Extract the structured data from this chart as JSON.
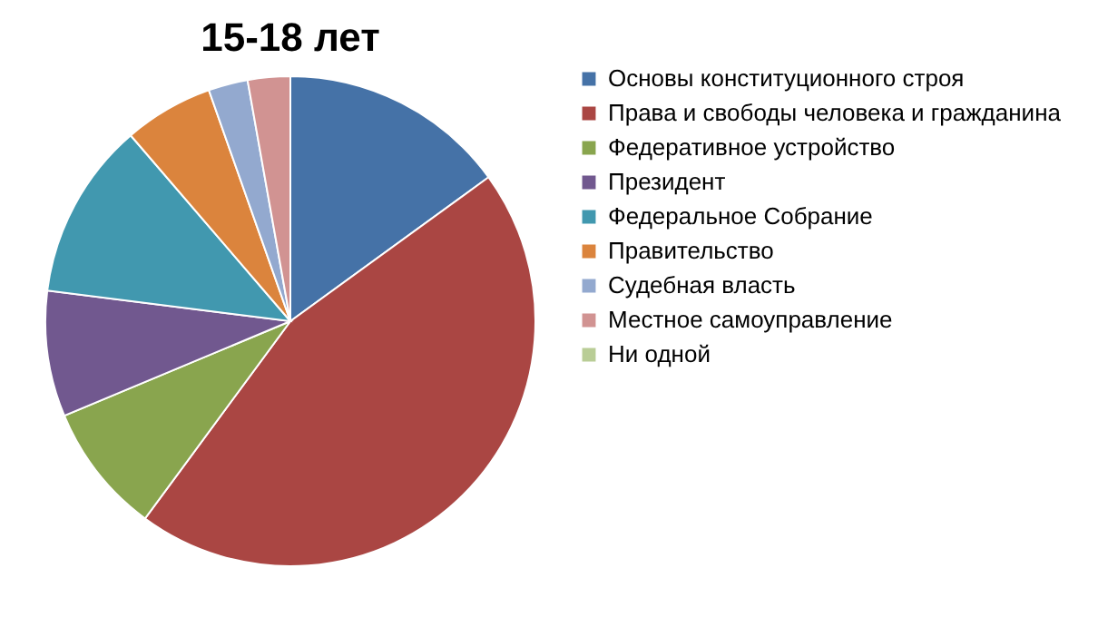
{
  "chart_data": {
    "type": "pie",
    "title": "15-18 лет",
    "categories": [
      "Основы конституционного строя",
      "Права и свободы человека и гражданина",
      "Федеративное устройство",
      "Президент",
      "Федеральное Собрание",
      "Правительство",
      "Судебная власть",
      "Местное самоуправление",
      "Ни одной"
    ],
    "values": [
      15,
      45.1,
      8.6,
      8.3,
      11.7,
      5.9,
      2.6,
      2.8,
      0
    ],
    "colors": [
      "#4572a7",
      "#aa4643",
      "#89a54e",
      "#71588f",
      "#4198af",
      "#db843d",
      "#93a9cf",
      "#d19392",
      "#b9cd96"
    ],
    "legend": "right"
  }
}
